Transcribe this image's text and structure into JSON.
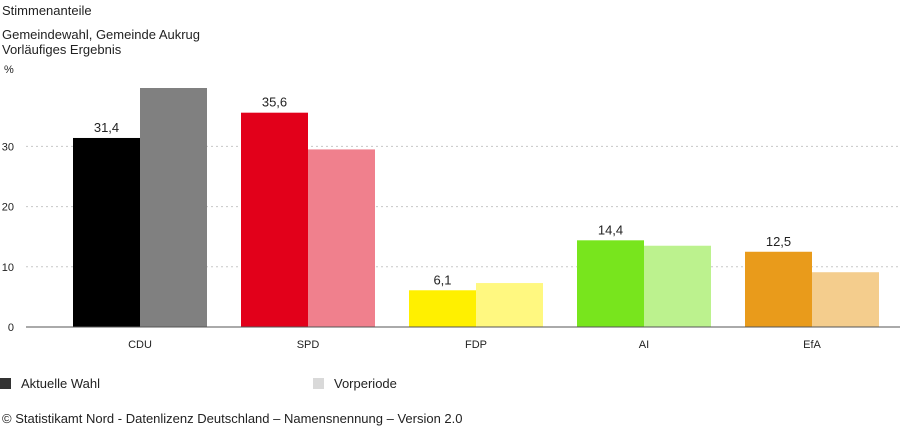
{
  "header": {
    "title": "Stimmenanteile",
    "subtitle_line1": "Gemeindewahl, Gemeinde Aukrug",
    "subtitle_line2": "Vorläufiges Ergebnis"
  },
  "chart_data": {
    "type": "bar",
    "ylabel": "%",
    "ylim": [
      0,
      40
    ],
    "yticks": [
      0,
      10,
      20,
      30
    ],
    "grid": true,
    "categories": [
      "CDU",
      "SPD",
      "FDP",
      "AI",
      "EfA"
    ],
    "series": [
      {
        "name": "Aktuelle Wahl",
        "values": [
          31.4,
          35.6,
          6.1,
          14.4,
          12.5
        ],
        "value_labels": [
          "31,4",
          "35,6",
          "6,1",
          "14,4",
          "12,5"
        ],
        "colors": [
          "#000000",
          "#e2001a",
          "#fff000",
          "#78e51d",
          "#e99b1b"
        ]
      },
      {
        "name": "Vorperiode",
        "values": [
          39.7,
          29.5,
          7.3,
          13.5,
          9.1
        ],
        "colors": [
          "#808080",
          "#f0808d",
          "#fff880",
          "#bcf28e",
          "#f4cd8d"
        ]
      }
    ],
    "legend": {
      "position": "bottom",
      "colors": [
        "#333333",
        "#d9d9d9"
      ]
    }
  },
  "footer": {
    "copyright": "© Statistikamt Nord - Datenlizenz Deutschland – Namensnennung – Version 2.0"
  }
}
